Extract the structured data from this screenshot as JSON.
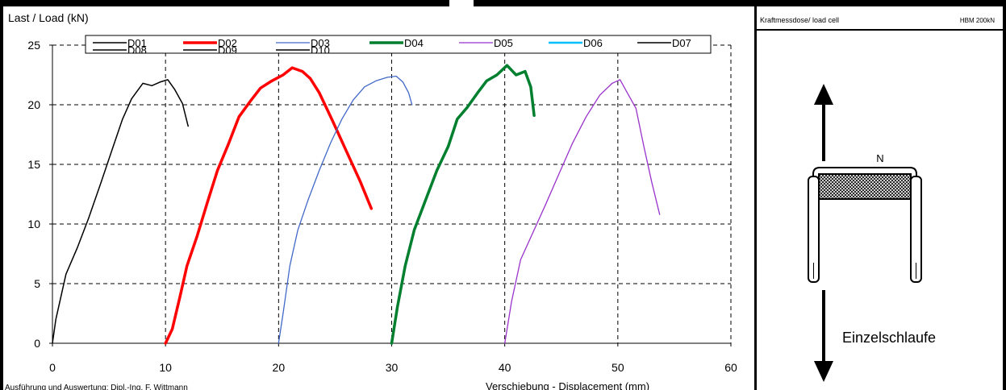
{
  "chart_data": {
    "type": "line",
    "title": "",
    "ylabel": "Last / Load (kN)",
    "xlabel": "Verschiebung - Displacement (mm)",
    "xlim": [
      0,
      60
    ],
    "ylim": [
      0,
      25
    ],
    "xticks": [
      "0",
      "10",
      "20",
      "30",
      "40",
      "50",
      "60"
    ],
    "yticks": [
      "0",
      "5",
      "10",
      "15",
      "20",
      "25"
    ],
    "grid": true,
    "legend_position": "top",
    "series": [
      {
        "name": "D01",
        "color": "#000000",
        "x": [
          0,
          0.3,
          1.2,
          2.2,
          3.2,
          4.3,
          5.3,
          6.2,
          7,
          8,
          8.8,
          9.5,
          10.2,
          10.8,
          11.5,
          12
        ],
        "y": [
          0,
          2,
          5.8,
          8,
          10.5,
          13.5,
          16.3,
          18.8,
          20.5,
          21.8,
          21.6,
          21.9,
          22.1,
          21.3,
          20.1,
          18.2
        ]
      },
      {
        "name": "D02",
        "color": "#ff0000",
        "x": [
          10,
          10.6,
          11.3,
          11.9,
          12.8,
          13.7,
          14.6,
          15.6,
          16.5,
          17.5,
          18.4,
          19.4,
          20.4,
          21.2,
          22.1,
          22.8,
          23.6,
          24.8,
          26,
          27.2,
          28.2
        ],
        "y": [
          0,
          1.2,
          4,
          6.5,
          9,
          11.8,
          14.5,
          16.8,
          19,
          20.3,
          21.4,
          22,
          22.5,
          23.1,
          22.8,
          22.2,
          21,
          18.6,
          16.1,
          13.6,
          11.3
        ]
      },
      {
        "name": "D03",
        "color": "#4169c8",
        "x": [
          20,
          20.4,
          21,
          21.7,
          22.6,
          23.6,
          24.6,
          25.6,
          26.6,
          27.6,
          28.6,
          29.6,
          30.4,
          31,
          31.5,
          31.8
        ],
        "y": [
          0,
          2.5,
          6.5,
          9.5,
          12,
          14.5,
          16.8,
          18.8,
          20.4,
          21.5,
          22,
          22.3,
          22.4,
          21.9,
          21,
          20
        ]
      },
      {
        "name": "D04",
        "color": "#007f2e",
        "x": [
          30,
          30.5,
          31.2,
          32,
          33,
          34,
          35,
          35.8,
          36.7,
          37.6,
          38.4,
          39.3,
          40.2,
          41,
          41.8,
          42.3,
          42.6
        ],
        "y": [
          0,
          3,
          6.5,
          9.5,
          12,
          14.5,
          16.5,
          18.8,
          19.8,
          21,
          22,
          22.5,
          23.3,
          22.5,
          22.8,
          21.5,
          19.1
        ]
      },
      {
        "name": "D05",
        "color": "#9932cc",
        "x": [
          40,
          40.6,
          41.4,
          42.5,
          43.6,
          44.8,
          46,
          47.2,
          48.4,
          49.5,
          50.2,
          50.9,
          51.6,
          52.3,
          53,
          53.7
        ],
        "y": [
          0,
          3.5,
          7,
          9.3,
          11.6,
          14.2,
          16.8,
          19,
          20.8,
          21.8,
          22.1,
          20.9,
          19.7,
          16.5,
          13.5,
          10.8
        ]
      },
      {
        "name": "D06",
        "color": "#00bfff",
        "x": [],
        "y": []
      },
      {
        "name": "D07",
        "color": "#000000",
        "x": [],
        "y": []
      },
      {
        "name": "D08",
        "color": "#000000",
        "x": [],
        "y": []
      },
      {
        "name": "D09",
        "color": "#000000",
        "x": [],
        "y": []
      },
      {
        "name": "D10",
        "color": "#000000",
        "x": [],
        "y": []
      }
    ]
  },
  "footer": {
    "credit": "Ausführung und Auswertung: Dipl.-Ing. F. Wittmann"
  },
  "load_cell": {
    "label": "Kraftmessdose/ load cell",
    "model": "HBM 200kN"
  },
  "diagram": {
    "node_label": "N",
    "caption": "Einzelschlaufe"
  }
}
